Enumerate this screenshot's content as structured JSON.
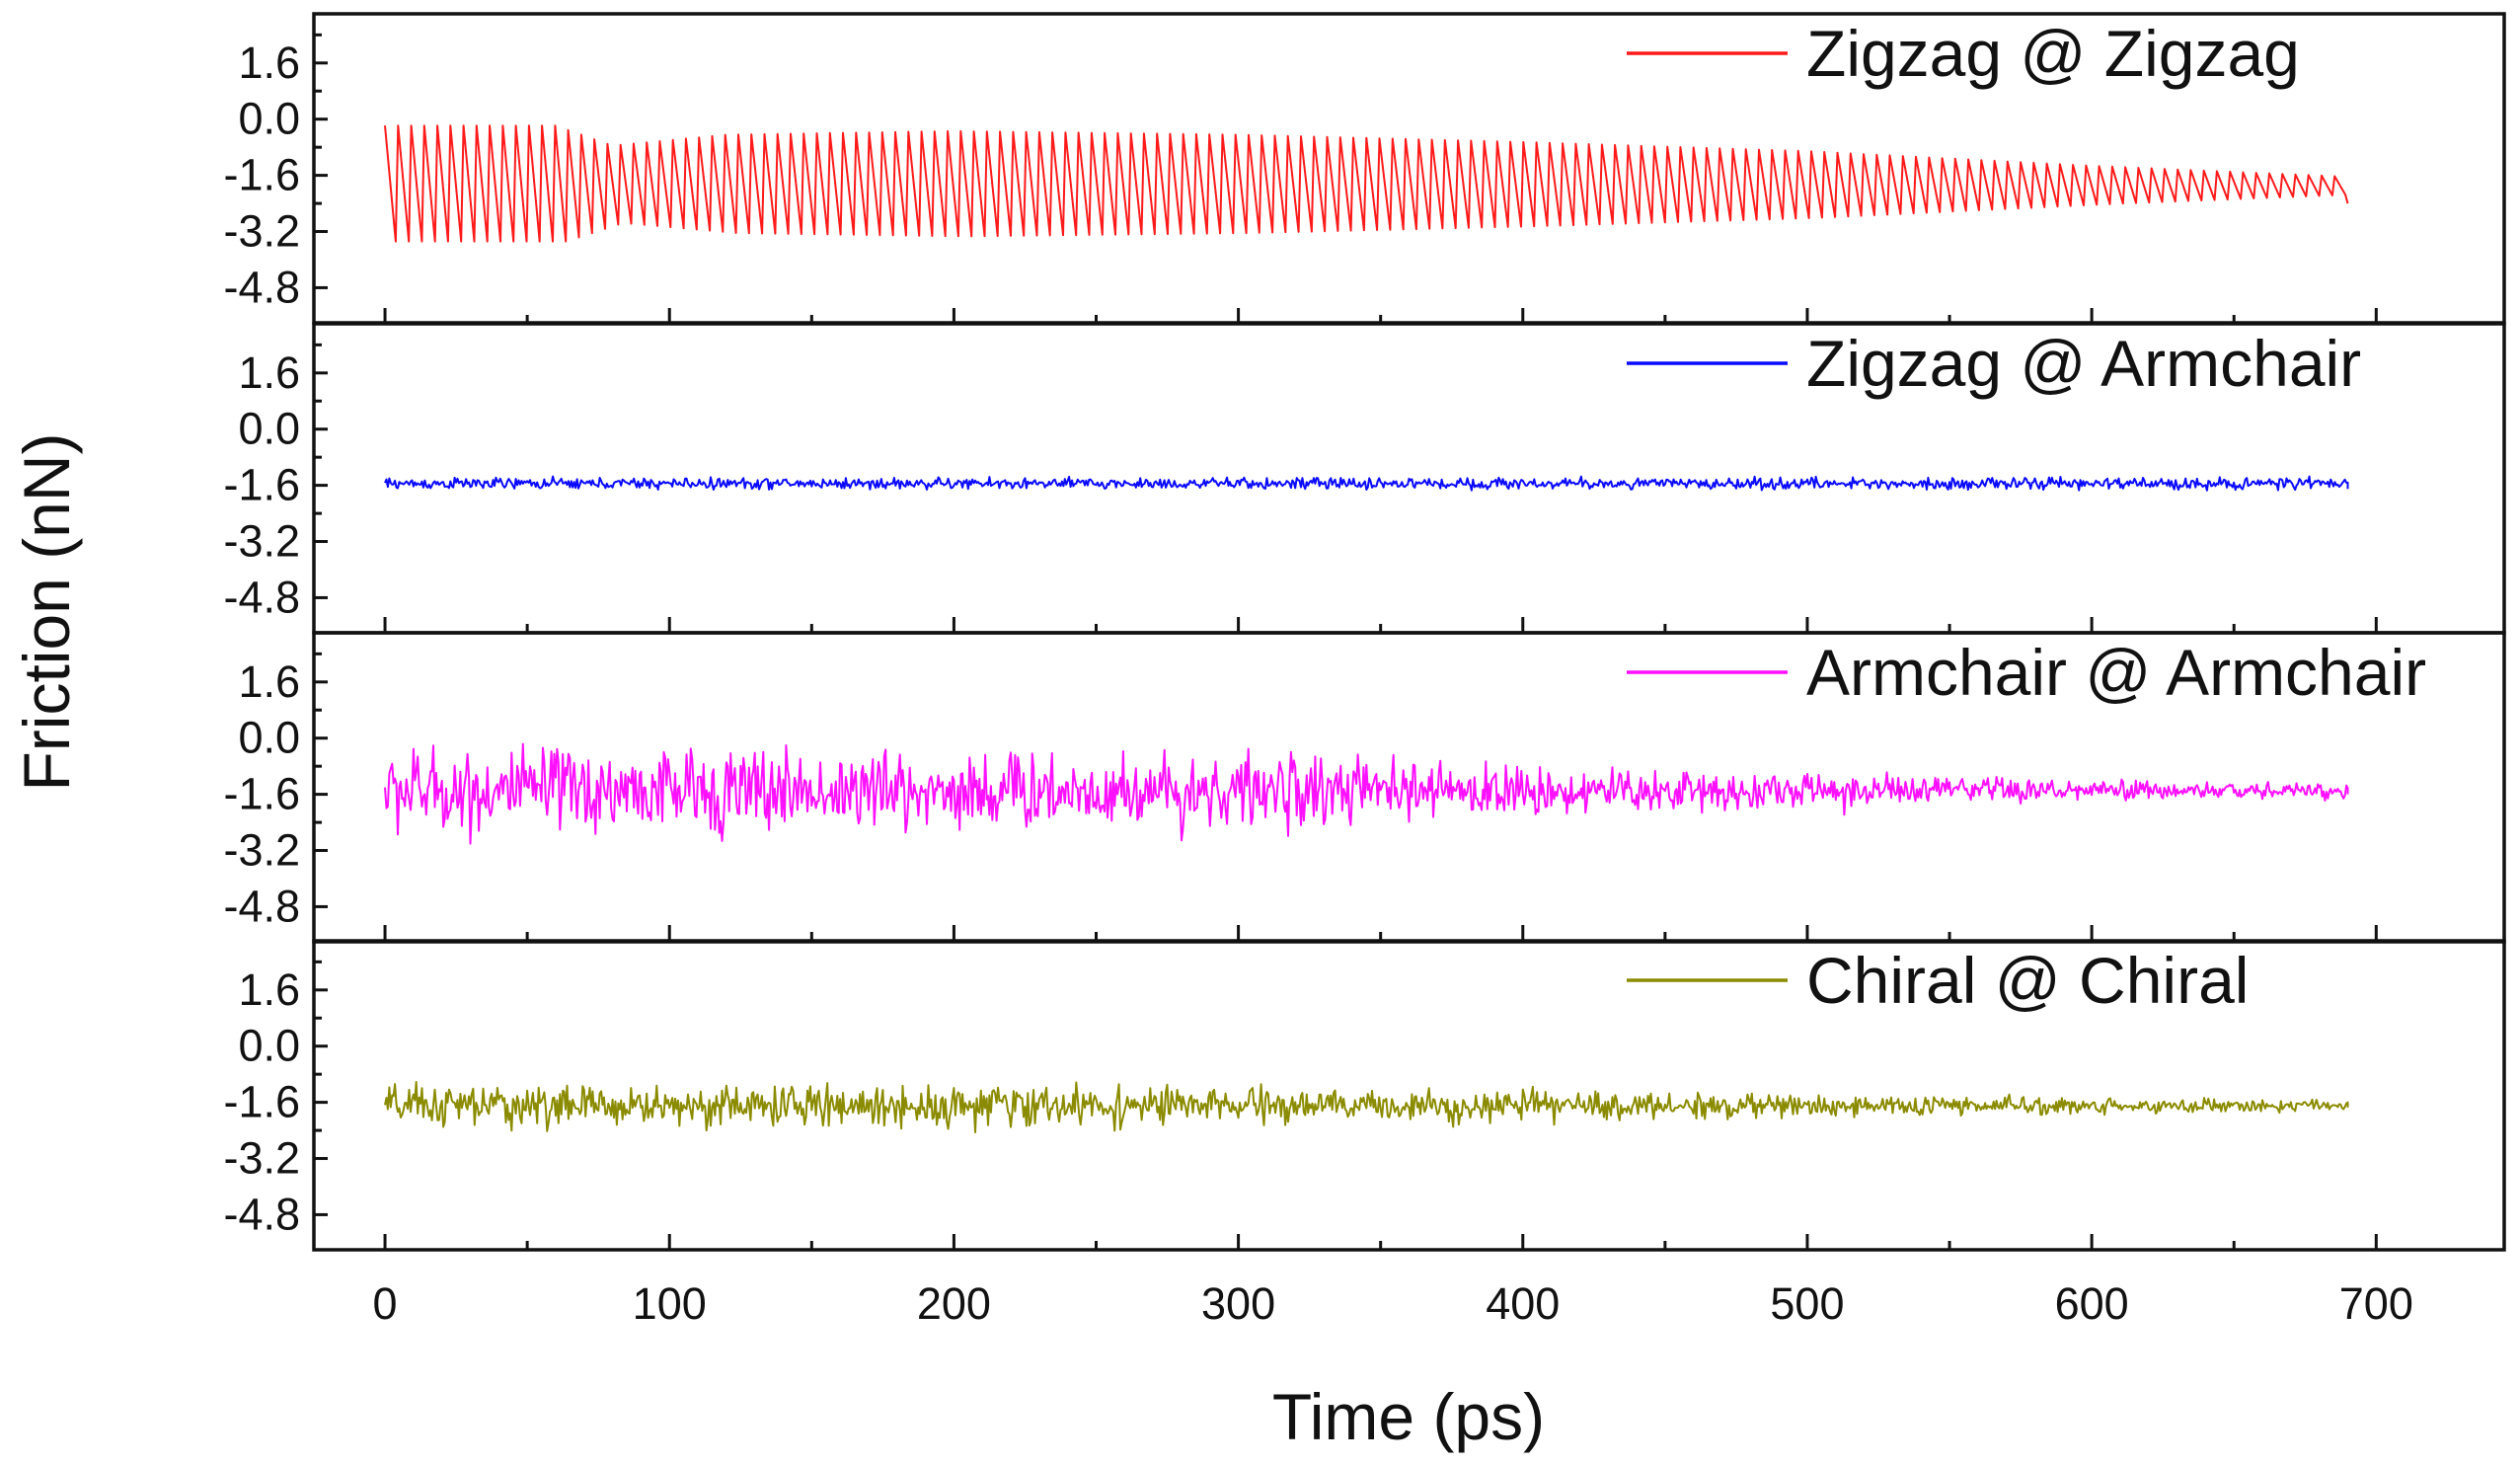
{
  "chart_data": {
    "type": "line",
    "layout": "stacked-panels",
    "xlabel": "Time (ps)",
    "ylabel": "Friction (nN)",
    "xlim": [
      -25,
      745
    ],
    "x_ticks": [
      0,
      100,
      200,
      300,
      400,
      500,
      600,
      700
    ],
    "ylim": [
      -5.8,
      3.0
    ],
    "y_ticks": [
      1.6,
      0.0,
      -1.6,
      -3.2,
      -4.8
    ],
    "y_tick_labels": [
      "1.6",
      "0.0",
      "-1.6",
      "-3.2",
      "-4.8"
    ],
    "legend_position": "top-right of each panel",
    "grid": false,
    "time_range": [
      0,
      690
    ],
    "series": [
      {
        "name": "Zigzag @ Zigzag",
        "color": "#ff1a1a",
        "behavior": "large stick-slip sawtooth oscillation decaying over time",
        "mean": -1.9,
        "period_ps": 4.6,
        "amplitude_envelope": [
          [
            0,
            3.3
          ],
          [
            60,
            3.3
          ],
          [
            80,
            2.2
          ],
          [
            120,
            2.8
          ],
          [
            200,
            3.0
          ],
          [
            300,
            2.8
          ],
          [
            400,
            2.4
          ],
          [
            500,
            1.9
          ],
          [
            600,
            1.1
          ],
          [
            690,
            0.5
          ]
        ],
        "end_value": -2.4
      },
      {
        "name": "Zigzag @ Armchair",
        "color": "#0a0aff",
        "behavior": "flat with small noise",
        "mean": -1.55,
        "noise": 0.12,
        "end_value": -1.7
      },
      {
        "name": "Armchair @ Armchair",
        "color": "#ff10ff",
        "behavior": "noisy fluctuation decaying over time",
        "mean": -1.5,
        "noise_envelope": [
          [
            0,
            0.9
          ],
          [
            120,
            0.9
          ],
          [
            300,
            0.8
          ],
          [
            380,
            0.55
          ],
          [
            500,
            0.4
          ],
          [
            600,
            0.22
          ],
          [
            690,
            0.15
          ]
        ],
        "end_value": -1.6
      },
      {
        "name": "Chiral @ Chiral",
        "color": "#8b8b00",
        "behavior": "noisy fluctuation decaying over time",
        "mean": -1.7,
        "noise_envelope": [
          [
            0,
            0.45
          ],
          [
            250,
            0.42
          ],
          [
            400,
            0.3
          ],
          [
            550,
            0.2
          ],
          [
            690,
            0.12
          ]
        ],
        "end_value": -1.75
      }
    ]
  }
}
